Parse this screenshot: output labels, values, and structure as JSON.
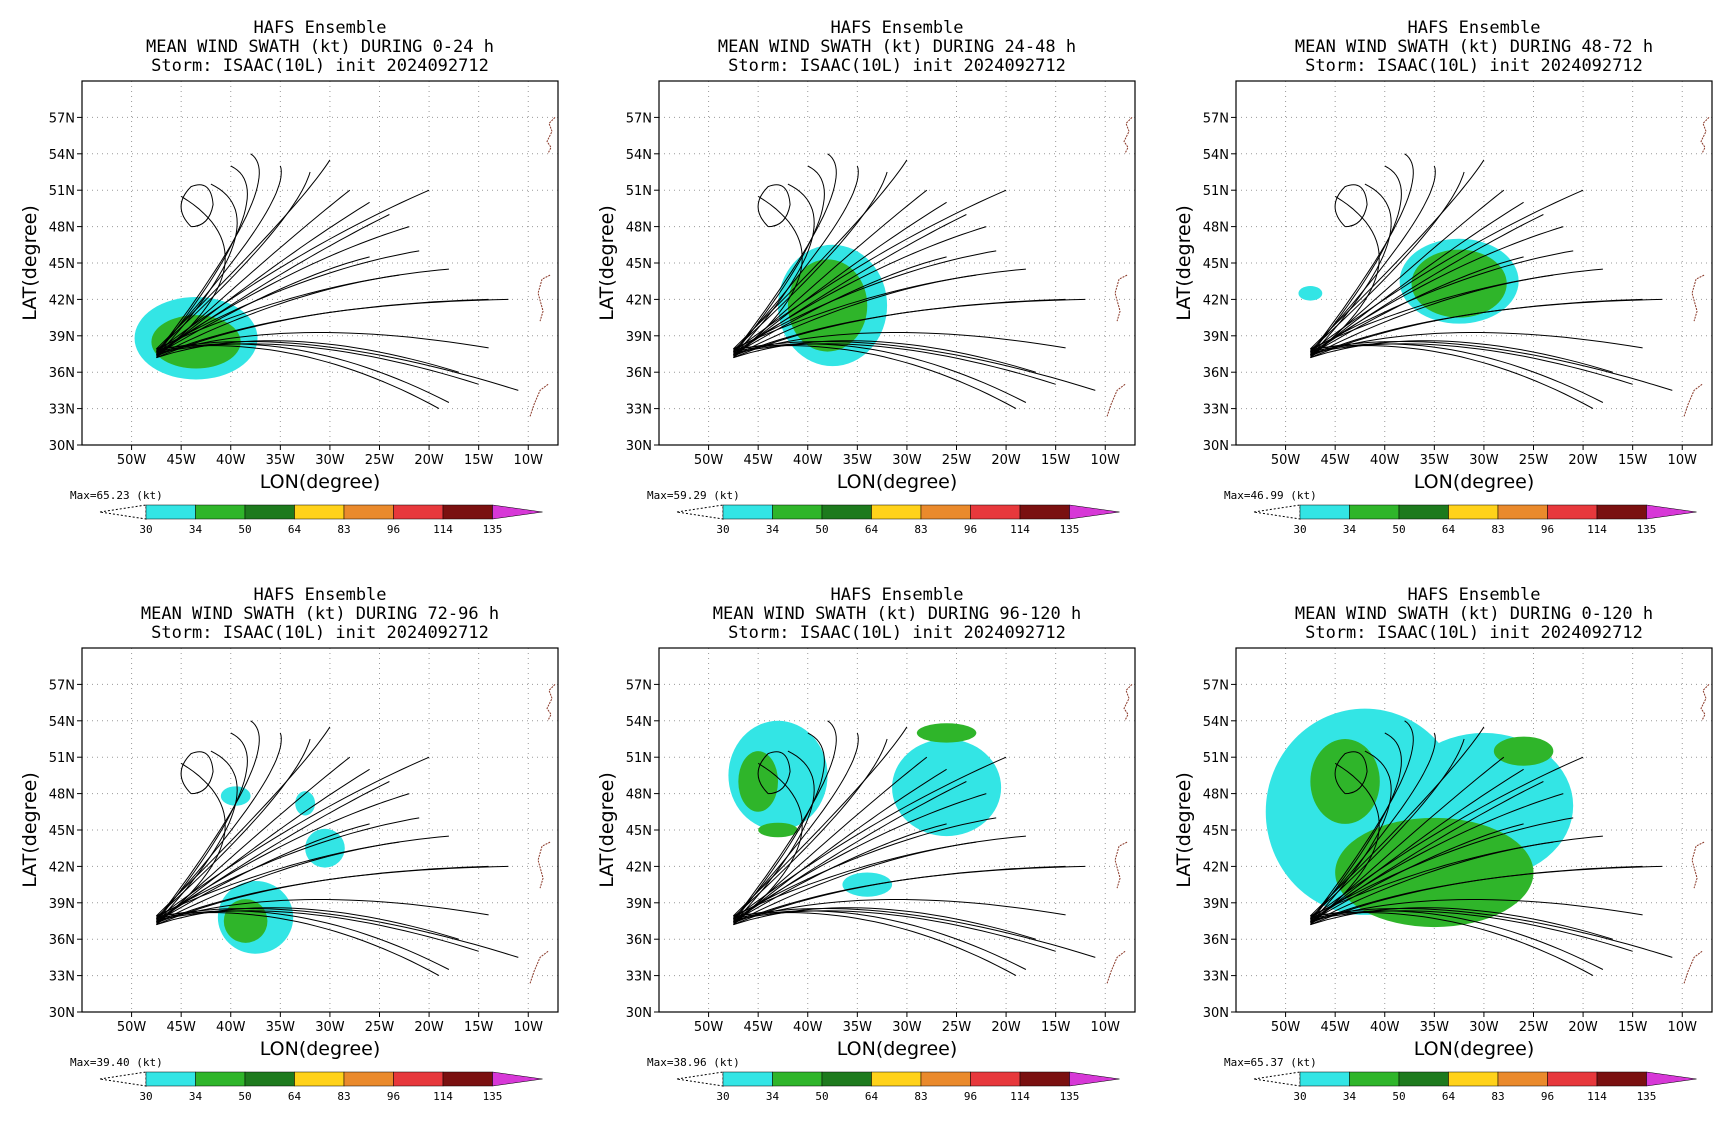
{
  "page": {
    "figure": "HAFS Ensemble mean wind swath multi-panel"
  },
  "common": {
    "model": "HAFS Ensemble",
    "storm_line": "Storm: ISAAC(10L) init 2024092712",
    "title_prefix": "MEAN WIND SWATH (kt) DURING",
    "xlabel": "LON(degree)",
    "ylabel": "LAT(degree)",
    "x_ticks": [
      "50W",
      "45W",
      "40W",
      "35W",
      "30W",
      "25W",
      "20W",
      "15W",
      "10W"
    ],
    "y_ticks": [
      "30N",
      "33N",
      "36N",
      "39N",
      "42N",
      "45N",
      "48N",
      "51N",
      "54N",
      "57N"
    ],
    "colorbar": {
      "levels": [
        "30",
        "34",
        "50",
        "64",
        "83",
        "96",
        "114",
        "135"
      ],
      "colors": [
        "#33e5e5",
        "#2fb52a",
        "#1d7a1d",
        "#ffd21a",
        "#ea8a2c",
        "#e7383c",
        "#7a1010",
        "#d738d7"
      ],
      "units": "(kt)"
    }
  },
  "chart_data": [
    {
      "type": "heatmap",
      "title": "HAFS Ensemble",
      "subtitle": "MEAN WIND SWATH (kt) DURING  0-24 h",
      "storm": "Storm: ISAAC(10L) init 2024092712",
      "max_label": "Max=65.23 (kt)",
      "max_value": 65.23,
      "xlim": [
        "55W",
        "7W"
      ],
      "ylim": [
        30,
        60
      ],
      "swath_34kt": [
        {
          "lon": -43.5,
          "lat": 38.5,
          "rx": 4.5,
          "ry": 2.2
        }
      ],
      "swath_30kt": [
        {
          "lon": -43.5,
          "lat": 38.8,
          "rx": 6.2,
          "ry": 3.4
        }
      ]
    },
    {
      "type": "heatmap",
      "title": "HAFS Ensemble",
      "subtitle": "MEAN WIND SWATH (kt) DURING 24-48 h",
      "storm": "Storm: ISAAC(10L) init 2024092712",
      "max_label": "Max=59.29 (kt)",
      "max_value": 59.29,
      "xlim": [
        "55W",
        "7W"
      ],
      "ylim": [
        30,
        60
      ],
      "swath_34kt": [
        {
          "lon": -38,
          "lat": 41.5,
          "rx": 4,
          "ry": 3.8
        }
      ],
      "swath_30kt": [
        {
          "lon": -37.5,
          "lat": 41.5,
          "rx": 5.5,
          "ry": 5
        }
      ]
    },
    {
      "type": "heatmap",
      "title": "HAFS Ensemble",
      "subtitle": "MEAN WIND SWATH (kt) DURING 48-72 h",
      "storm": "Storm: ISAAC(10L) init 2024092712",
      "max_label": "Max=46.99 (kt)",
      "max_value": 46.99,
      "xlim": [
        "55W",
        "7W"
      ],
      "ylim": [
        30,
        60
      ],
      "swath_34kt": [
        {
          "lon": -32.5,
          "lat": 43.3,
          "rx": 4.8,
          "ry": 2.8
        }
      ],
      "swath_30kt": [
        {
          "lon": -32.5,
          "lat": 43.5,
          "rx": 6,
          "ry": 3.5
        },
        {
          "lon": -47.5,
          "lat": 42.5,
          "rx": 1.2,
          "ry": 0.6
        }
      ]
    },
    {
      "type": "heatmap",
      "title": "HAFS Ensemble",
      "subtitle": "MEAN WIND SWATH (kt) DURING 72-96 h",
      "storm": "Storm: ISAAC(10L) init 2024092712",
      "max_label": "Max=39.40 (kt)",
      "max_value": 39.4,
      "xlim": [
        "55W",
        "7W"
      ],
      "ylim": [
        30,
        60
      ],
      "swath_34kt": [
        {
          "lon": -38.5,
          "lat": 37.5,
          "rx": 2.2,
          "ry": 1.8
        }
      ],
      "swath_30kt": [
        {
          "lon": -37.5,
          "lat": 37.8,
          "rx": 3.8,
          "ry": 3
        },
        {
          "lon": -30.5,
          "lat": 43.5,
          "rx": 2,
          "ry": 1.6
        },
        {
          "lon": -39.5,
          "lat": 47.8,
          "rx": 1.5,
          "ry": 0.8
        },
        {
          "lon": -32.5,
          "lat": 47.2,
          "rx": 1,
          "ry": 1
        }
      ]
    },
    {
      "type": "heatmap",
      "title": "HAFS Ensemble",
      "subtitle": "MEAN WIND SWATH (kt) DURING 96-120 h",
      "storm": "Storm: ISAAC(10L) init 2024092712",
      "max_label": "Max=38.96 (kt)",
      "max_value": 38.96,
      "xlim": [
        "55W",
        "7W"
      ],
      "ylim": [
        30,
        60
      ],
      "swath_34kt": [
        {
          "lon": -45,
          "lat": 49,
          "rx": 2,
          "ry": 2.5
        },
        {
          "lon": -43,
          "lat": 45,
          "rx": 2,
          "ry": 0.6
        },
        {
          "lon": -26,
          "lat": 53,
          "rx": 3,
          "ry": 0.8
        }
      ],
      "swath_30kt": [
        {
          "lon": -43,
          "lat": 49.5,
          "rx": 5,
          "ry": 4.5
        },
        {
          "lon": -26,
          "lat": 48.5,
          "rx": 5.5,
          "ry": 4
        },
        {
          "lon": -34,
          "lat": 40.5,
          "rx": 2.5,
          "ry": 1
        }
      ]
    },
    {
      "type": "heatmap",
      "title": "HAFS Ensemble",
      "subtitle": "MEAN WIND SWATH (kt) DURING 0-120 h",
      "storm": "Storm: ISAAC(10L) init 2024092712",
      "max_label": "Max=65.37 (kt)",
      "max_value": 65.37,
      "xlim": [
        "55W",
        "7W"
      ],
      "ylim": [
        30,
        60
      ],
      "swath_34kt": [
        {
          "lon": -44,
          "lat": 49,
          "rx": 3.5,
          "ry": 3.5
        },
        {
          "lon": -35,
          "lat": 41.5,
          "rx": 10,
          "ry": 4.5
        },
        {
          "lon": -26,
          "lat": 51.5,
          "rx": 3,
          "ry": 1.2
        }
      ],
      "swath_30kt": [
        {
          "lon": -42,
          "lat": 46.5,
          "rx": 10,
          "ry": 8.5
        },
        {
          "lon": -30,
          "lat": 47,
          "rx": 9,
          "ry": 6
        }
      ]
    }
  ]
}
